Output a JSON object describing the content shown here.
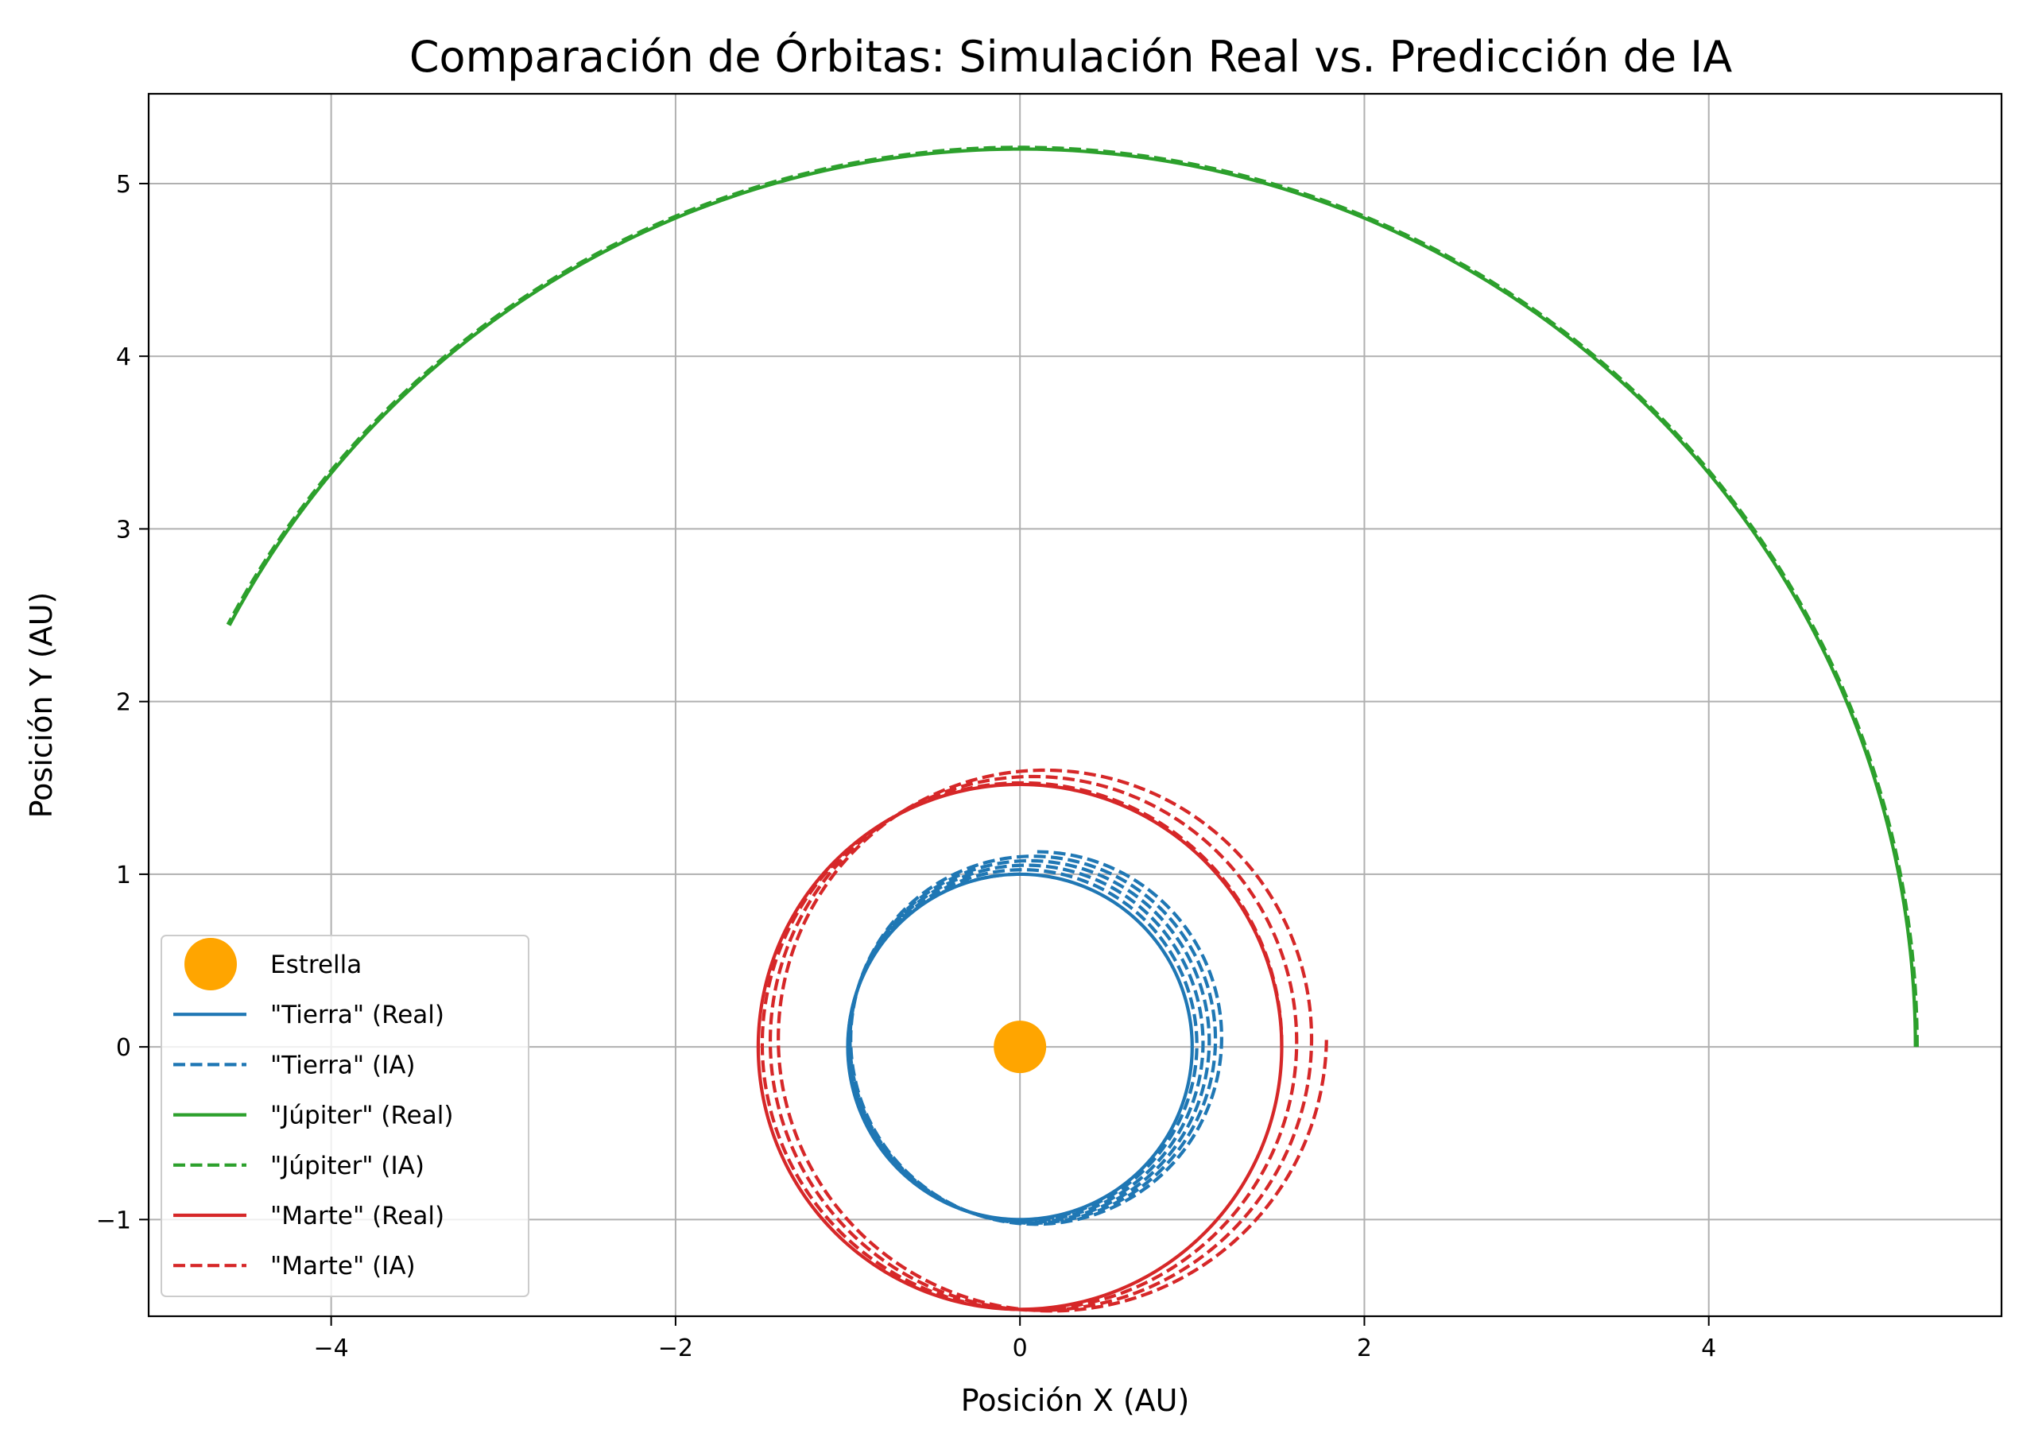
{
  "chart_data": {
    "type": "line",
    "title": "Comparación de Órbitas: Simulación Real vs. Predicción de IA",
    "xlabel": "Posición X (AU)",
    "ylabel": "Posición Y (AU)",
    "xlim": [
      -5.06,
      5.7
    ],
    "ylim": [
      -1.56,
      5.52
    ],
    "xticks": [
      -4,
      -2,
      0,
      2,
      4
    ],
    "xtick_labels": [
      "−4",
      "−2",
      "0",
      "2",
      "4"
    ],
    "yticks": [
      -1,
      0,
      1,
      2,
      3,
      4,
      5
    ],
    "ytick_labels": [
      "−1",
      "0",
      "1",
      "2",
      "3",
      "4",
      "5"
    ],
    "grid": true,
    "legend_position": "lower-left",
    "star": {
      "name": "Estrella",
      "x": 0,
      "y": 0,
      "color": "#ffa500"
    },
    "series": [
      {
        "name": "\"Tierra\" (Real)",
        "color": "#1f77b4",
        "style": "solid",
        "orbit": {
          "radius": 1.0,
          "turns": 8,
          "start_angle_deg": 90
        }
      },
      {
        "name": "\"Tierra\" (IA)",
        "color": "#1f77b4",
        "style": "dashed",
        "orbit": {
          "radius": 1.0,
          "turns": 5,
          "start_angle_deg": 90,
          "center_drift_x": 0.1,
          "center_drift_y": 0.05,
          "radius_growth": 0.08
        }
      },
      {
        "name": "\"Júpiter\" (Real)",
        "color": "#2ca02c",
        "style": "solid",
        "orbit": {
          "radius": 5.2,
          "start_angle_deg": 0,
          "end_angle_deg": 152
        }
      },
      {
        "name": "\"Júpiter\" (IA)",
        "color": "#2ca02c",
        "style": "dashed",
        "orbit": {
          "radius": 5.21,
          "start_angle_deg": 0,
          "end_angle_deg": 152
        }
      },
      {
        "name": "\"Marte\" (Real)",
        "color": "#d62728",
        "style": "solid",
        "orbit": {
          "radius": 1.52,
          "center_x": 0.0,
          "center_y": 0.0,
          "turns": 3,
          "start_angle_deg": 0
        }
      },
      {
        "name": "\"Marte\" (IA)",
        "color": "#d62728",
        "style": "dashed",
        "orbit": {
          "radius": 1.52,
          "turns": 3,
          "start_angle_deg": 0,
          "center_drift_x": 0.2,
          "center_drift_y": 0.05,
          "radius_growth": 0.06
        }
      }
    ]
  }
}
